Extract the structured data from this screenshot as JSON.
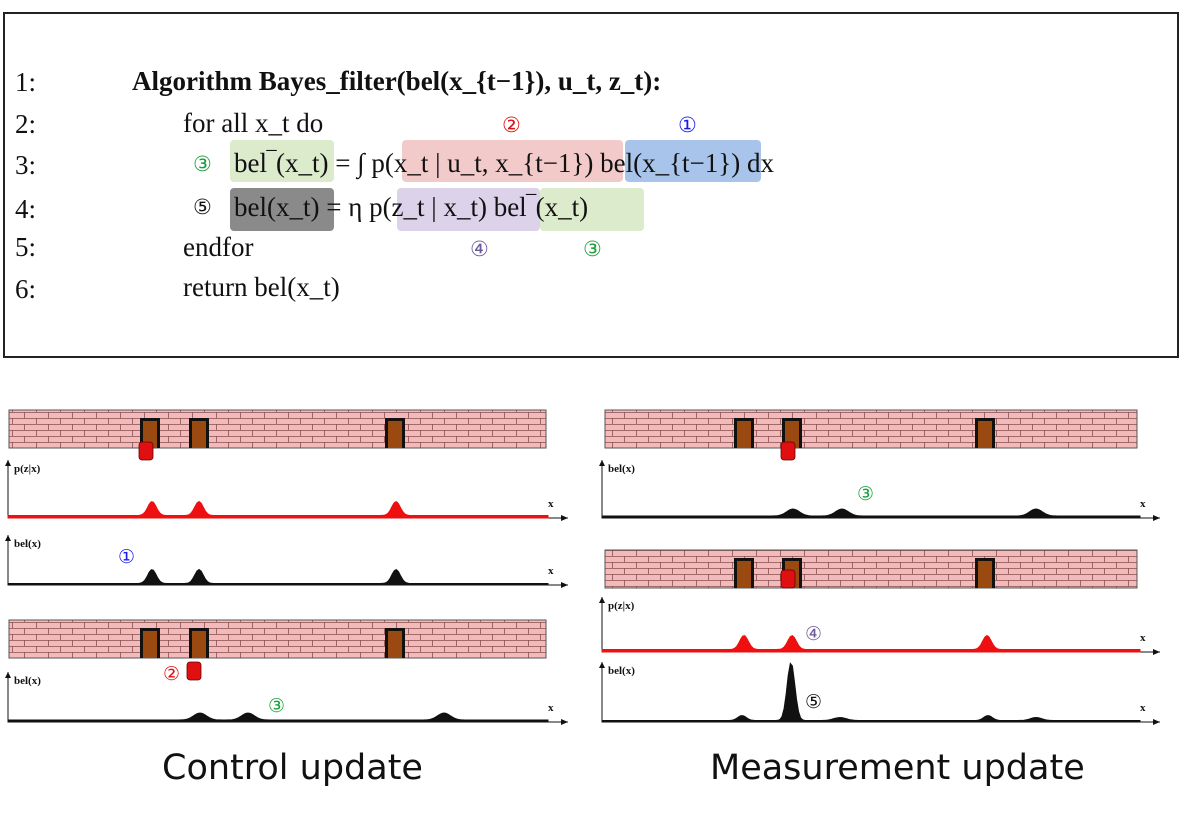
{
  "algorithm": {
    "line_numbers": [
      "1:",
      "2:",
      "3:",
      "4:",
      "5:",
      "6:"
    ],
    "title": "Algorithm Bayes_filter(bel(x_{t−1}), u_t, z_t):",
    "line2": "for all x_t do",
    "line3": "bel‾(x_t) = ∫ p(x_t | u_t, x_{t−1}) bel(x_{t−1}) dx",
    "line4": "bel(x_t) = η p(z_t | x_t) bel‾(x_t)",
    "line5": "endfor",
    "line6": "return bel(x_t)"
  },
  "markers": {
    "one": "①",
    "two": "②",
    "three": "③",
    "four": "④",
    "five": "⑤"
  },
  "colors": {
    "marker_one": "#1a1aee",
    "marker_two": "#e01010",
    "marker_three": "#19a03a",
    "marker_four": "#6a5a9a",
    "marker_five": "#111111",
    "highlight_red": "#f3caca",
    "highlight_blue": "#a9c4ea",
    "highlight_green": "#dcebcc",
    "highlight_purple": "#dcd3ea",
    "highlight_gray": "#8a8a8a",
    "wall_fill": "#f2baba",
    "door_fill": "#9a4a10",
    "robot_fill": "#e01010",
    "sensor_curve": "#ee1010",
    "belief_curve": "#111111"
  },
  "plot_labels": {
    "pz": "p(z|x)",
    "bel": "bel(x)",
    "x": "x"
  },
  "captions": {
    "control": "Control update",
    "measurement": "Measurement update"
  }
}
